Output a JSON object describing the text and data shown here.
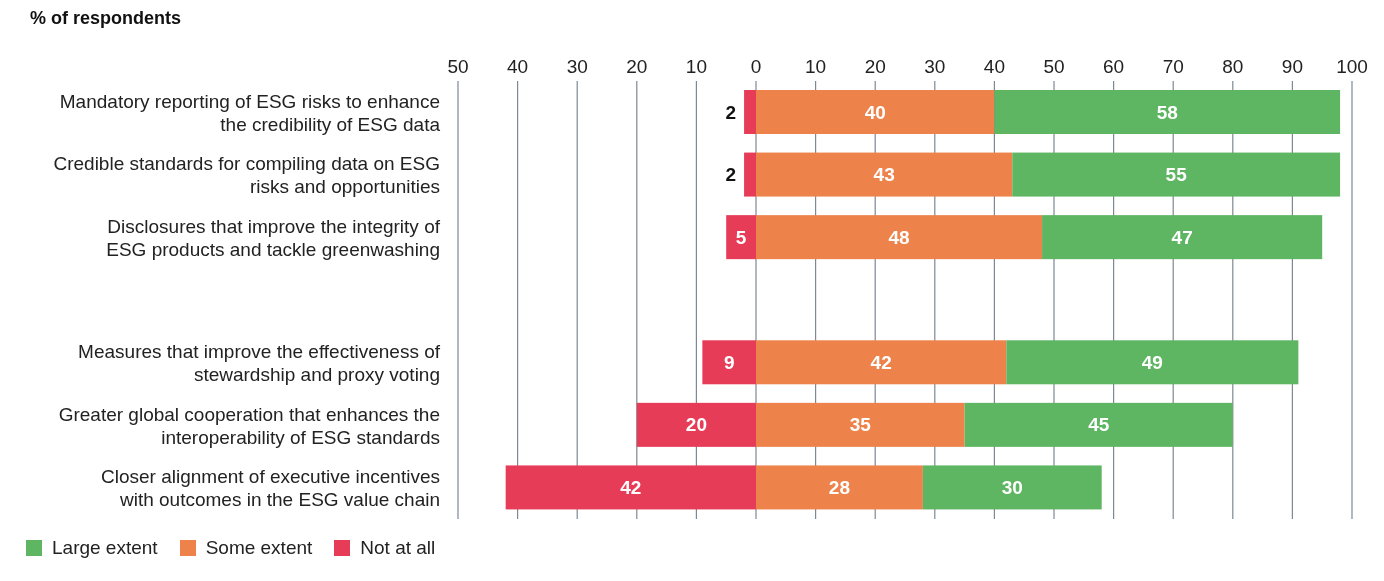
{
  "chart_data": {
    "type": "bar",
    "orientation": "horizontal",
    "stacked": true,
    "title": "% of respondents",
    "categories": [
      "Mandatory reporting of ESG risks to enhance the credibility of ESG data",
      "Credible standards for compiling data on ESG risks and opportunities",
      "Disclosures that improve the integrity of ESG products and tackle greenwashing",
      null,
      "Measures that improve the effectiveness of stewardship and proxy voting",
      "Greater global cooperation that enhances the interoperability of ESG standards",
      "Closer alignment of executive incentives with outcomes in the ESG value chain"
    ],
    "series": [
      {
        "name": "Not at all",
        "color": "#e63c58",
        "values": [
          2,
          2,
          5,
          null,
          9,
          20,
          42
        ],
        "base": [
          -2,
          -2,
          -5,
          null,
          -9,
          -20,
          -42
        ],
        "value_labels": [
          "2",
          "2",
          "5",
          null,
          "9",
          "20",
          "42"
        ]
      },
      {
        "name": "Some extent",
        "color": "#ed834a",
        "values": [
          40,
          43,
          48,
          null,
          42,
          35,
          28
        ],
        "value_labels": [
          "40",
          "43",
          "48",
          null,
          "42",
          "35",
          "28"
        ]
      },
      {
        "name": "Large extent",
        "color": "#5eb562",
        "values": [
          58,
          55,
          47,
          null,
          49,
          45,
          30
        ],
        "value_labels": [
          "58",
          "55",
          "47",
          null,
          "49",
          "45",
          "30"
        ]
      }
    ],
    "xlim": [
      -50,
      100
    ],
    "xticks": [
      {
        "value": -50,
        "label": "50"
      },
      {
        "value": -40,
        "label": "40"
      },
      {
        "value": -30,
        "label": "30"
      },
      {
        "value": -20,
        "label": "20"
      },
      {
        "value": -10,
        "label": "10"
      },
      0,
      10,
      20,
      30,
      40,
      50,
      60,
      70,
      80,
      90,
      100
    ],
    "grid": "x",
    "legend": "bottom left"
  }
}
